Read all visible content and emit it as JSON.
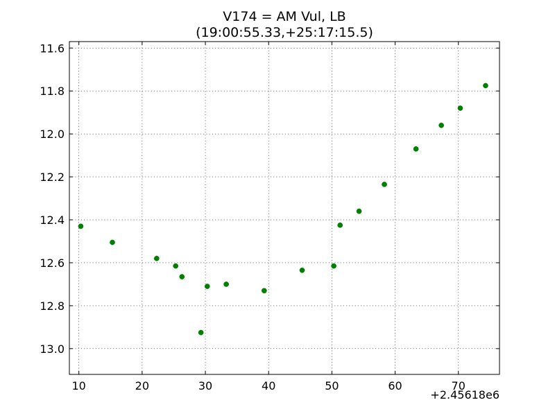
{
  "chart_data": {
    "type": "scatter",
    "title": "V174 = AM Vul, LB",
    "subtitle": "(19:00:55.33,+25:17:15.5)",
    "xlabel": "",
    "ylabel": "",
    "x_offset_label": "+2.45618e6",
    "x_offset_value": 2456180,
    "xlim": [
      2456188.5,
      2456256.5
    ],
    "ylim": [
      13.12,
      11.57
    ],
    "y_inverted": true,
    "grid": true,
    "marker_color": "#007f00",
    "x_ticks": [
      2456190,
      2456200,
      2456210,
      2456220,
      2456230,
      2456240,
      2456250
    ],
    "x_tick_labels": [
      "10",
      "20",
      "30",
      "40",
      "50",
      "60",
      "70"
    ],
    "y_ticks": [
      11.6,
      11.8,
      12.0,
      12.2,
      12.4,
      12.6,
      12.8,
      13.0
    ],
    "y_tick_labels": [
      "11.6",
      "11.8",
      "12.0",
      "12.2",
      "12.4",
      "12.6",
      "12.8",
      "13.0"
    ],
    "series": [
      {
        "x": [
          2456190.3,
          2456195.3,
          2456202.3,
          2456205.3,
          2456206.3,
          2456209.3,
          2456210.3,
          2456213.3,
          2456219.3,
          2456225.3,
          2456230.3,
          2456231.3,
          2456234.3,
          2456238.3,
          2456243.3,
          2456247.3,
          2456250.3,
          2456254.3
        ],
        "y": [
          12.43,
          12.505,
          12.58,
          12.615,
          12.665,
          12.925,
          12.71,
          12.7,
          12.73,
          12.635,
          12.615,
          12.425,
          12.36,
          12.235,
          12.07,
          11.96,
          11.88,
          11.775
        ]
      }
    ]
  }
}
